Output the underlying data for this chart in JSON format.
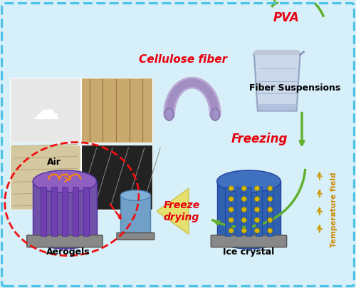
{
  "background_color": "#d6eff8",
  "border_color": "#4dc3e8",
  "title": "",
  "labels": {
    "cellulose_fiber": "Cellulose fiber",
    "pva": "PVA",
    "fiber_suspensions": "Fiber Suspensions",
    "freezing": "Freezing",
    "freeze_drying": "Freeze\ndrying",
    "aerogels": "Aerogels",
    "ice_crystal": "Ice crystal",
    "air": "Air",
    "temperature_field": "Temperature field"
  },
  "label_colors": {
    "cellulose_fiber": "#e8000e",
    "pva": "#e8000e",
    "fiber_suspensions": "#000000",
    "freezing": "#e8000e",
    "freeze_drying": "#e8000e",
    "aerogels": "#000000",
    "ice_crystal": "#000000",
    "air": "#000000",
    "temperature_field": "#cc8800"
  }
}
